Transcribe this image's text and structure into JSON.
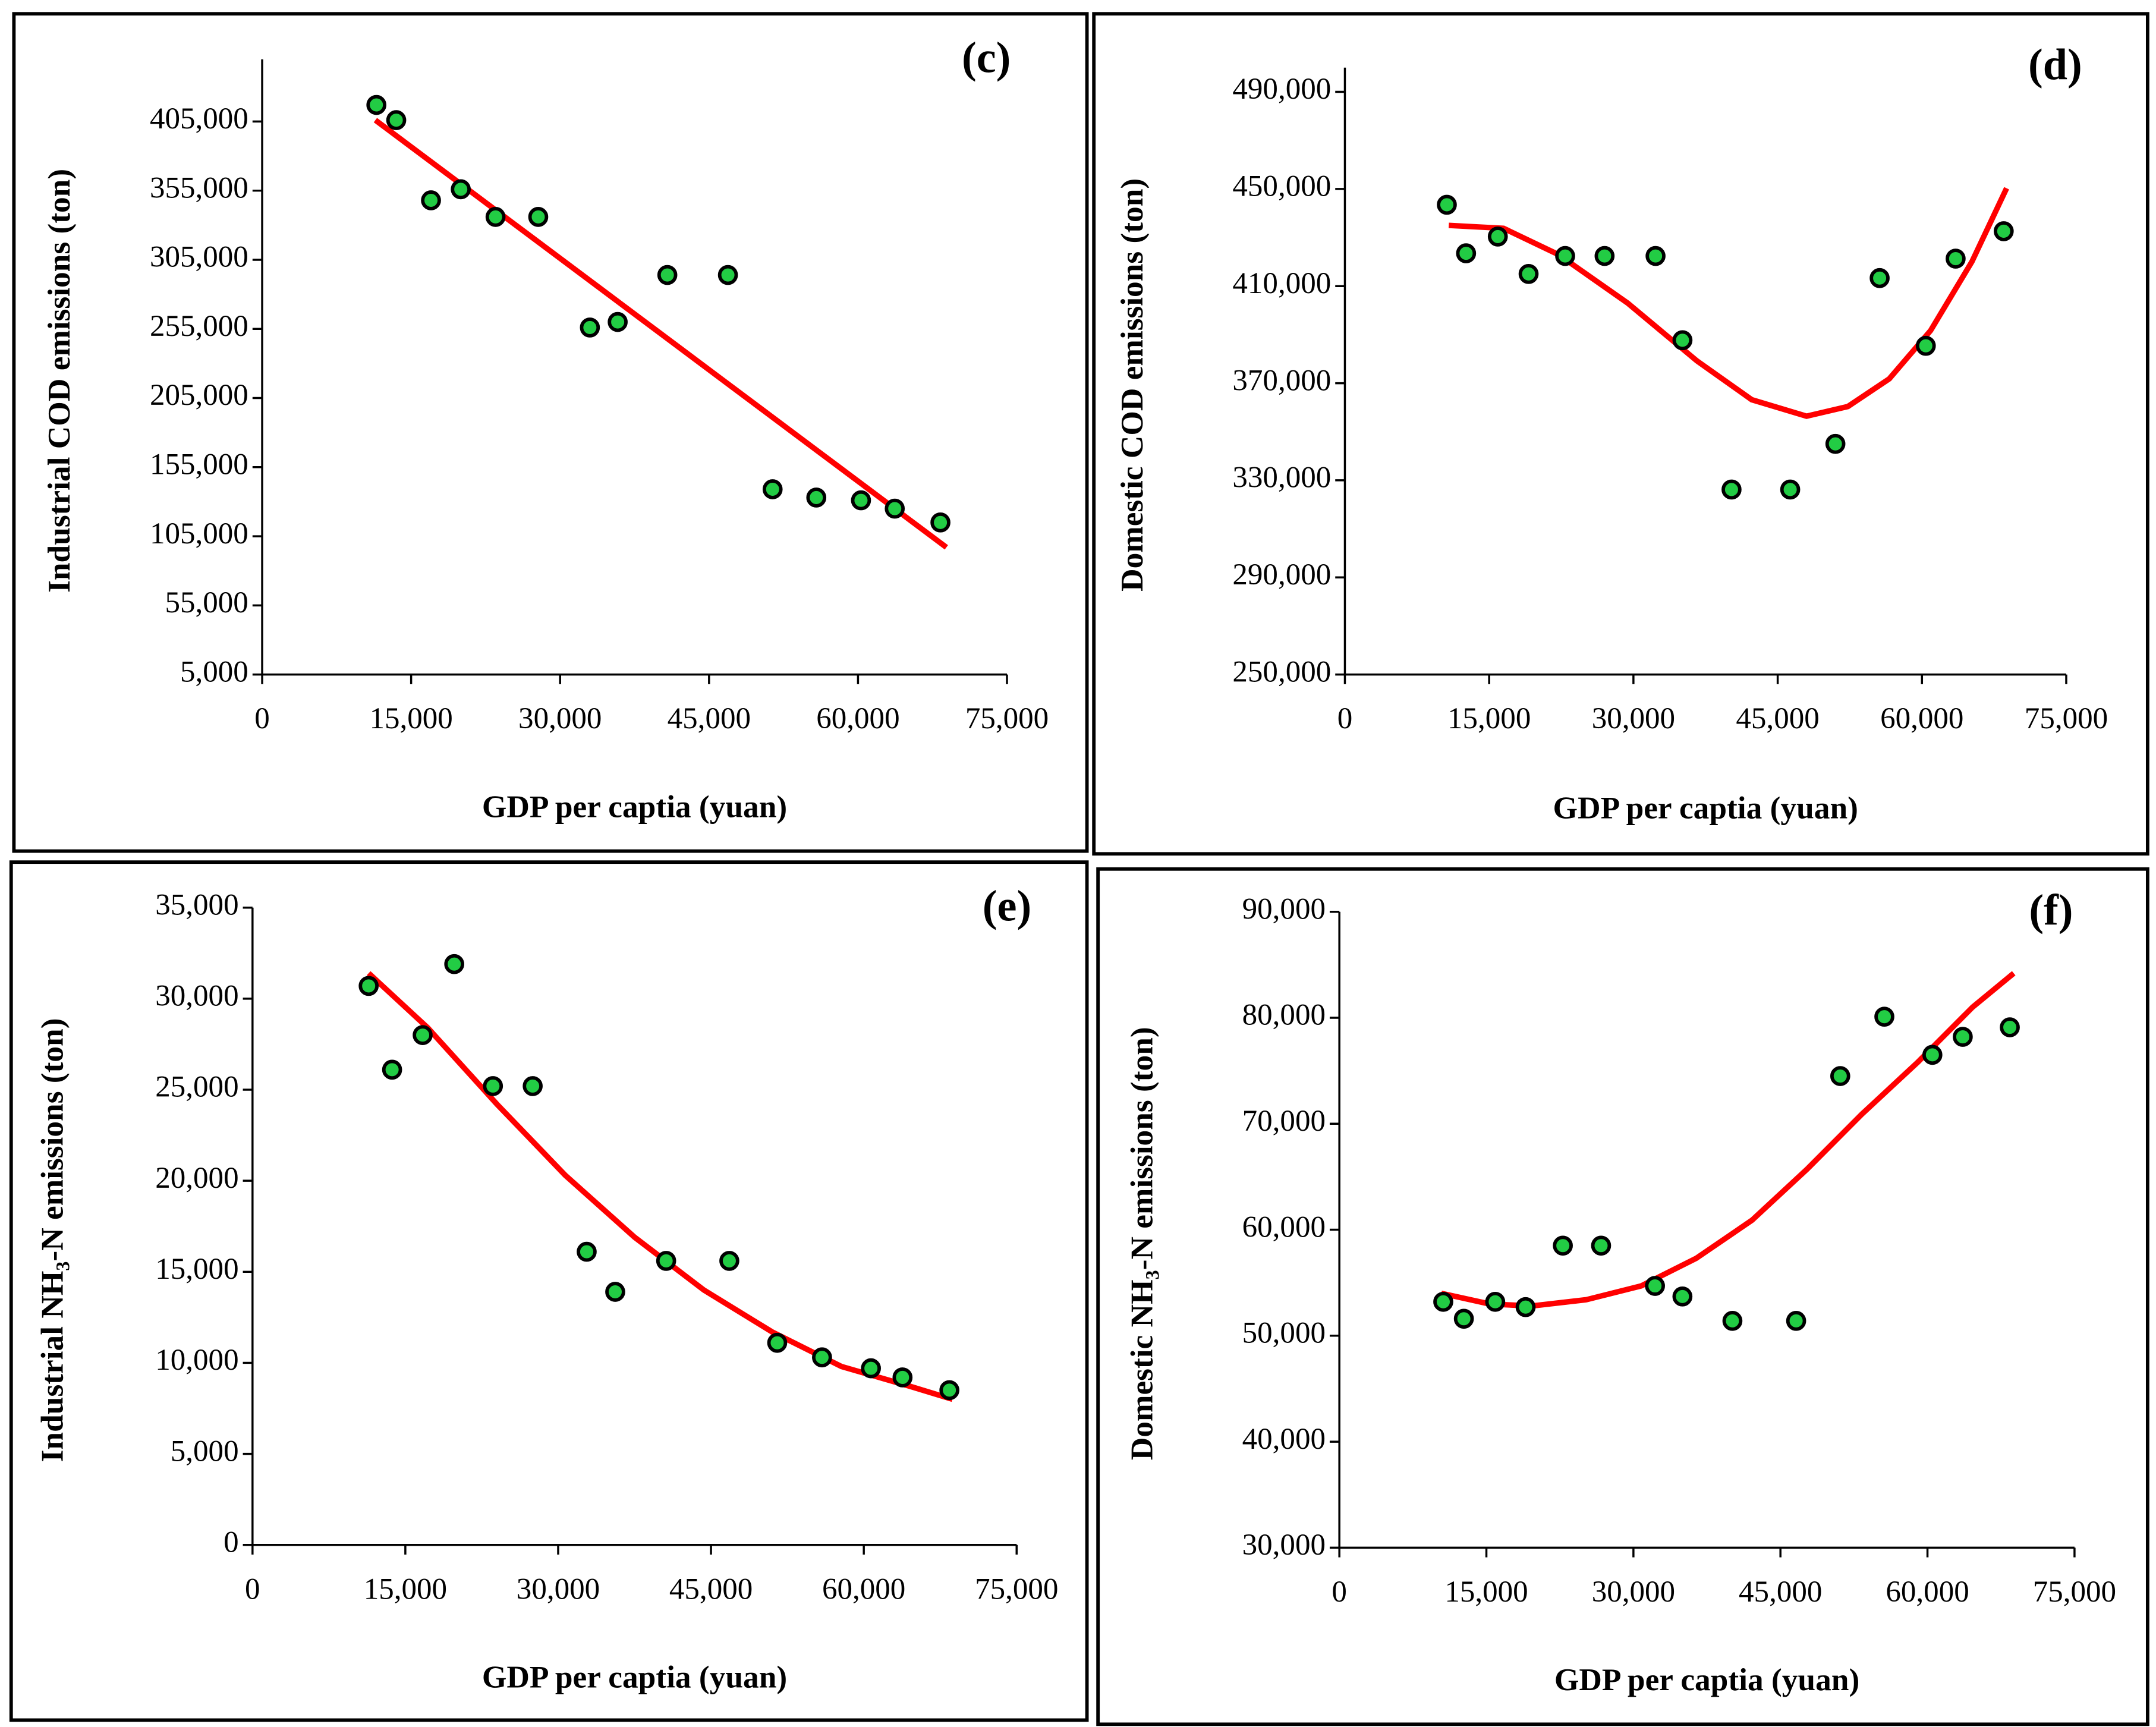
{
  "chart_data": [
    {
      "type": "scatter",
      "title": "(c)",
      "xlabel": "GDP per captia (yuan)",
      "ylabel": "Industrial COD emissions (ton)",
      "xlim": [
        0,
        75000
      ],
      "ylim": [
        5000,
        450000
      ],
      "xticks": [
        0,
        {
          "value": 15000,
          "label": "15,000"
        },
        {
          "value": 30000,
          "label": "30,000"
        },
        {
          "value": 45000,
          "label": "45,000"
        },
        {
          "value": 60000,
          "label": "60,000"
        },
        {
          "value": 75000,
          "label": "75,000"
        }
      ],
      "yticks": [
        {
          "value": 5000,
          "label": "5,000"
        },
        {
          "value": 55000,
          "label": "55,000"
        },
        {
          "value": 105000,
          "label": "105,000"
        },
        {
          "value": 155000,
          "label": "155,000"
        },
        {
          "value": 205000,
          "label": "205,000"
        },
        {
          "value": 255000,
          "label": "255,000"
        },
        {
          "value": 305000,
          "label": "305,000"
        },
        {
          "value": 355000,
          "label": "355,000"
        },
        {
          "value": 405000,
          "label": "405,000"
        }
      ],
      "series": [
        {
          "type": "scatter",
          "color": "#22cc44",
          "x": [
            11500,
            13500,
            17000,
            20000,
            23500,
            27800,
            33000,
            35800,
            40800,
            46900,
            51400,
            55800,
            60300,
            63700,
            68300
          ],
          "values": [
            417000,
            406000,
            348000,
            356000,
            336000,
            336000,
            256000,
            260000,
            294000,
            294000,
            139000,
            133000,
            131000,
            125000,
            115000
          ]
        },
        {
          "type": "line",
          "color": "#ff0000",
          "x": [
            11400,
            68900
          ],
          "values": [
            406000,
            97000
          ]
        }
      ]
    },
    {
      "type": "scatter",
      "title": "(d)",
      "xlabel": "GDP per captia (yuan)",
      "ylabel": "Domestic COD emissions (ton)",
      "xlim": [
        0,
        75000
      ],
      "ylim": [
        250000,
        500000
      ],
      "xticks": [
        0,
        {
          "value": 15000,
          "label": "15,000"
        },
        {
          "value": 30000,
          "label": "30,000"
        },
        {
          "value": 45000,
          "label": "45,000"
        },
        {
          "value": 60000,
          "label": "60,000"
        },
        {
          "value": 75000,
          "label": "75,000"
        }
      ],
      "yticks": [
        {
          "value": 250000,
          "label": "250,000"
        },
        {
          "value": 290000,
          "label": "290,000"
        },
        {
          "value": 330000,
          "label": "330,000"
        },
        {
          "value": 370000,
          "label": "370,000"
        },
        {
          "value": 410000,
          "label": "410,000"
        },
        {
          "value": 450000,
          "label": "450,000"
        },
        {
          "value": 490000,
          "label": "490,000"
        }
      ],
      "series": [
        {
          "type": "scatter",
          "color": "#22cc44",
          "x": [
            10600,
            12600,
            15900,
            19100,
            22900,
            27000,
            32300,
            35100,
            40200,
            46300,
            51000,
            55600,
            60400,
            63500,
            68500
          ],
          "values": [
            443500,
            423500,
            430400,
            415000,
            422400,
            422400,
            422400,
            387700,
            326200,
            326200,
            345000,
            413300,
            385400,
            421300,
            432600
          ]
        },
        {
          "type": "line",
          "color": "#ff0000",
          "x": [
            10800,
            16500,
            22200,
            29400,
            36600,
            42300,
            48000,
            52300,
            56600,
            60900,
            65200,
            68800
          ],
          "values": [
            435000,
            433800,
            423000,
            403000,
            379200,
            363200,
            356400,
            360400,
            371800,
            391700,
            420100,
            450300
          ]
        }
      ]
    },
    {
      "type": "scatter",
      "title": "(e)",
      "xlabel": "GDP per captia (yuan)",
      "ylabel": "Industrial NH₃-N emissions (ton)",
      "xlim": [
        0,
        75000
      ],
      "ylim": [
        0,
        35000
      ],
      "xticks": [
        0,
        {
          "value": 15000,
          "label": "15,000"
        },
        {
          "value": 30000,
          "label": "30,000"
        },
        {
          "value": 45000,
          "label": "45,000"
        },
        {
          "value": 60000,
          "label": "60,000"
        },
        {
          "value": 75000,
          "label": "75,000"
        }
      ],
      "yticks": [
        0,
        {
          "value": 5000,
          "label": "5,000"
        },
        {
          "value": 10000,
          "label": "10,000"
        },
        {
          "value": 15000,
          "label": "15,000"
        },
        {
          "value": 20000,
          "label": "20,000"
        },
        {
          "value": 25000,
          "label": "25,000"
        },
        {
          "value": 30000,
          "label": "30,000"
        },
        {
          "value": 35000,
          "label": "35,000"
        }
      ],
      "series": [
        {
          "type": "scatter",
          "color": "#22cc44",
          "x": [
            11400,
            13700,
            16700,
            19800,
            23600,
            27500,
            32800,
            35600,
            40600,
            46800,
            51500,
            55900,
            60700,
            63800,
            68400
          ],
          "values": [
            30700,
            26100,
            28000,
            31900,
            25200,
            25200,
            16100,
            13900,
            15600,
            15600,
            11100,
            10300,
            9700,
            9200,
            8500
          ]
        },
        {
          "type": "line",
          "color": "#ff0000",
          "x": [
            11400,
            17200,
            24000,
            30700,
            37500,
            44300,
            51000,
            57800,
            64600,
            68700
          ],
          "values": [
            31400,
            28400,
            24200,
            20300,
            16900,
            14000,
            11700,
            9800,
            8700,
            8000
          ]
        }
      ]
    },
    {
      "type": "scatter",
      "title": "(f)",
      "xlabel": "GDP per captia (yuan)",
      "ylabel": "Domestic NH₃-N emissions (ton)",
      "xlim": [
        0,
        75000
      ],
      "ylim": [
        30000,
        90000
      ],
      "xticks": [
        0,
        {
          "value": 15000,
          "label": "15,000"
        },
        {
          "value": 30000,
          "label": "30,000"
        },
        {
          "value": 45000,
          "label": "45,000"
        },
        {
          "value": 60000,
          "label": "60,000"
        },
        {
          "value": 75000,
          "label": "75,000"
        }
      ],
      "yticks": [
        {
          "value": 30000,
          "label": "30,000"
        },
        {
          "value": 40000,
          "label": "40,000"
        },
        {
          "value": 50000,
          "label": "50,000"
        },
        {
          "value": 60000,
          "label": "60,000"
        },
        {
          "value": 70000,
          "label": "70,000"
        },
        {
          "value": 80000,
          "label": "80,000"
        },
        {
          "value": 90000,
          "label": "90,000"
        }
      ],
      "series": [
        {
          "type": "scatter",
          "color": "#22cc44",
          "x": [
            10600,
            12700,
            15900,
            19000,
            22800,
            26700,
            32200,
            35000,
            40100,
            46600,
            51100,
            55600,
            60500,
            63600,
            68400
          ],
          "values": [
            53200,
            51600,
            53200,
            52700,
            58500,
            58500,
            54700,
            53700,
            51400,
            51400,
            74500,
            80100,
            76500,
            78200,
            79100
          ]
        },
        {
          "type": "line",
          "color": "#ff0000",
          "x": [
            10400,
            15300,
            19600,
            25200,
            30800,
            36400,
            42100,
            47700,
            53300,
            59000,
            64600,
            68800
          ],
          "values": [
            54000,
            53000,
            52800,
            53400,
            54700,
            57300,
            60900,
            65700,
            70900,
            75800,
            81000,
            84200
          ]
        }
      ]
    }
  ]
}
